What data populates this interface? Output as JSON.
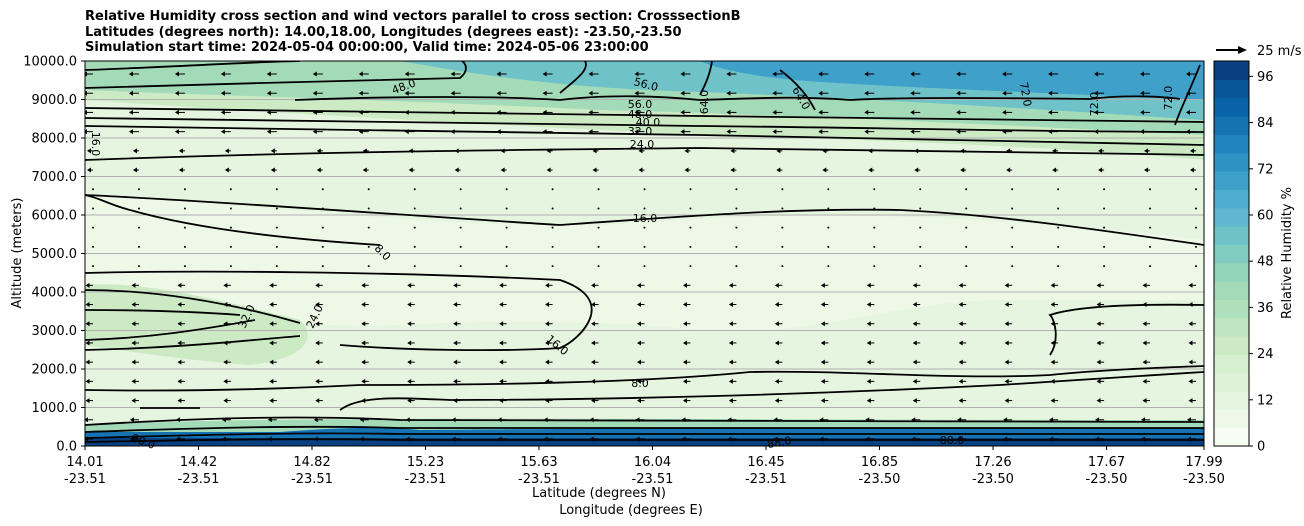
{
  "chart_data": {
    "type": "heatmap",
    "title_lines": [
      "Relative Humidity cross section and wind vectors parallel to cross section: CrosssectionB",
      "Latitudes (degrees north): 14.00,18.00, Longitudes (degrees east): -23.50,-23.50",
      "Simulation start time: 2024-05-04 00:00:00, Valid time: 2024-05-06 23:00:00"
    ],
    "ylabel": "Altitude (meters)",
    "xlabel_lat": "Latitude (degrees N)",
    "xlabel_lon": "Longitude (degrees E)",
    "ylim": [
      0,
      10000
    ],
    "y_ticks": [
      "0.0",
      "1000.0",
      "2000.0",
      "3000.0",
      "4000.0",
      "5000.0",
      "6000.0",
      "7000.0",
      "8000.0",
      "9000.0",
      "10000.0"
    ],
    "x_ticks": [
      {
        "lat": "14.01",
        "lon": "-23.51"
      },
      {
        "lat": "14.42",
        "lon": "-23.51"
      },
      {
        "lat": "14.82",
        "lon": "-23.51"
      },
      {
        "lat": "15.23",
        "lon": "-23.51"
      },
      {
        "lat": "15.63",
        "lon": "-23.51"
      },
      {
        "lat": "16.04",
        "lon": "-23.51"
      },
      {
        "lat": "16.45",
        "lon": "-23.51"
      },
      {
        "lat": "16.85",
        "lon": "-23.50"
      },
      {
        "lat": "17.26",
        "lon": "-23.50"
      },
      {
        "lat": "17.67",
        "lon": "-23.50"
      },
      {
        "lat": "17.99",
        "lon": "-23.50"
      }
    ],
    "colorbar": {
      "label": "Relative Humidity %",
      "range": [
        0,
        100
      ],
      "ticks": [
        "0",
        "12",
        "24",
        "36",
        "48",
        "60",
        "72",
        "84",
        "96"
      ],
      "colors": [
        "#f7fcf0",
        "#eef8e7",
        "#e6f5df",
        "#ddf2d8",
        "#d5efcf",
        "#ccebc5",
        "#bee5bf",
        "#b0e0bb",
        "#a3dab8",
        "#92d4bc",
        "#80ccc1",
        "#6fc3c8",
        "#5fb8cf",
        "#4eaed2",
        "#3fa0ca",
        "#3091c3",
        "#2283bc",
        "#1573b2",
        "#0864a6",
        "#085598",
        "#084081"
      ]
    },
    "contour_labels": [
      "8.0",
      "16.0",
      "24.0",
      "32.0",
      "40.0",
      "48.0",
      "56.0",
      "64.0",
      "72.0",
      "80.0",
      "88.0"
    ],
    "wind_key_label": "25 m/s"
  },
  "colors": {
    "axis": "#000000",
    "grid": "#b0b0b0",
    "contour": "#000000",
    "arrow": "#000000"
  }
}
